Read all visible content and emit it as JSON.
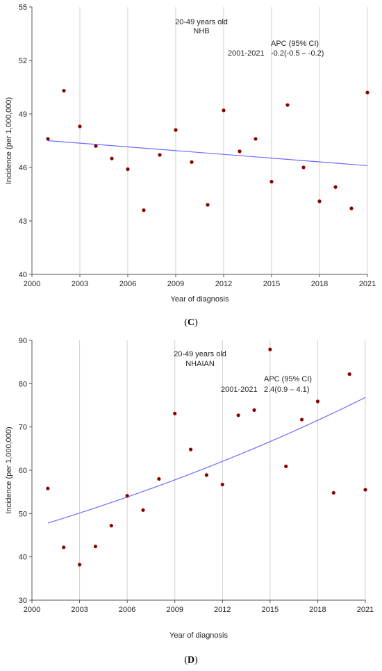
{
  "chart_data": [
    {
      "type": "scatter",
      "panel_label": "C",
      "annotation_lines": [
        "20-49 years old",
        "NHB"
      ],
      "apc_header": "APC (95% CI)",
      "apc_period": "2001-2021",
      "apc_value": "-0.2(-0.5 – -0.2)",
      "xlabel": "Year of diagnosis",
      "ylabel": "Incidence (per 1,000,000)",
      "xlim": [
        2000,
        2021
      ],
      "ylim": [
        40,
        55
      ],
      "xticks": [
        "2000",
        "2003",
        "2006",
        "2009",
        "2012",
        "2015",
        "2018",
        "2021"
      ],
      "yticks": [
        "40",
        "43",
        "46",
        "49",
        "52",
        "55"
      ],
      "grid": "vertical",
      "x": [
        2001,
        2002,
        2003,
        2004,
        2005,
        2006,
        2007,
        2008,
        2009,
        2010,
        2011,
        2012,
        2013,
        2014,
        2015,
        2016,
        2017,
        2018,
        2019,
        2020,
        2021
      ],
      "y": [
        47.6,
        50.3,
        48.3,
        47.2,
        46.5,
        45.9,
        43.6,
        46.7,
        48.1,
        46.3,
        43.9,
        49.2,
        46.9,
        47.6,
        45.2,
        49.5,
        46.0,
        44.1,
        44.9,
        43.7,
        50.2
      ],
      "trend": {
        "x": [
          2001,
          2021
        ],
        "y": [
          47.5,
          46.1
        ],
        "color": "#6b6bff"
      },
      "point_color": "#8b0000"
    },
    {
      "type": "scatter",
      "panel_label": "D",
      "annotation_lines": [
        "20-49 years old",
        "NHAIAN"
      ],
      "apc_header": "APC (95% CI)",
      "apc_period": "2001-2021",
      "apc_value": "2.4(0.9 – 4.1)",
      "xlabel": "Year of diagnosis",
      "ylabel": "Incidence (per 1,000,000)",
      "xlim": [
        2000,
        2021
      ],
      "ylim": [
        30,
        90
      ],
      "xticks": [
        "2000",
        "2003",
        "2006",
        "2009",
        "2012",
        "2015",
        "2018",
        "2021"
      ],
      "yticks": [
        "30",
        "40",
        "50",
        "60",
        "70",
        "80",
        "90"
      ],
      "grid": "vertical",
      "x": [
        2001,
        2002,
        2003,
        2004,
        2005,
        2006,
        2007,
        2008,
        2009,
        2010,
        2011,
        2012,
        2013,
        2014,
        2015,
        2016,
        2017,
        2018,
        2019,
        2020,
        2021
      ],
      "y": [
        55.8,
        42.2,
        38.2,
        42.4,
        47.2,
        54.1,
        50.8,
        58.0,
        73.1,
        64.8,
        58.9,
        56.7,
        72.7,
        73.9,
        87.9,
        60.9,
        71.7,
        75.9,
        54.8,
        82.2,
        55.5
      ],
      "trend": {
        "x0": 2001,
        "x1": 2021,
        "y0": 47.8,
        "apc": 2.4,
        "color": "#6b6bff"
      },
      "point_color": "#8b0000"
    }
  ]
}
